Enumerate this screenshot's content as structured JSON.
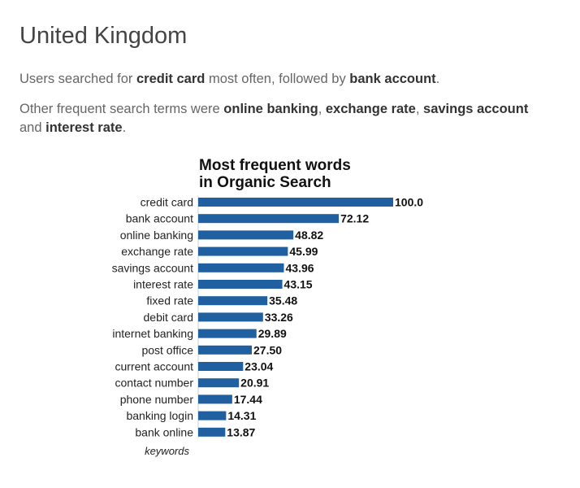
{
  "header": {
    "title": "United Kingdom"
  },
  "summary": {
    "p1": {
      "prefix": "Users searched for ",
      "term1": "credit card",
      "middle": " most often, followed by ",
      "term2": "bank account",
      "suffix": "."
    },
    "p2": {
      "prefix": "Other frequent search terms were ",
      "term1": "online banking",
      "sep1": ", ",
      "term2": "exchange rate",
      "sep2": ", ",
      "term3": "savings account",
      "middle": " and ",
      "term4": "interest rate",
      "suffix": "."
    }
  },
  "chart_data": {
    "type": "bar",
    "orientation": "horizontal",
    "title_line1": "Most frequent words",
    "title_line2": "in Organic Search",
    "ylabel": "keywords",
    "categories": [
      "credit card",
      "bank account",
      "online banking",
      "exchange rate",
      "savings account",
      "interest rate",
      "fixed rate",
      "debit card",
      "internet banking",
      "post office",
      "current account",
      "contact number",
      "phone number",
      "banking login",
      "bank online"
    ],
    "values": [
      100.0,
      72.12,
      48.82,
      45.99,
      43.96,
      43.15,
      35.48,
      33.26,
      29.89,
      27.5,
      23.04,
      20.91,
      17.44,
      14.31,
      13.87
    ],
    "value_labels": [
      "100.0",
      "72.12",
      "48.82",
      "45.99",
      "43.96",
      "43.15",
      "35.48",
      "33.26",
      "29.89",
      "27.50",
      "23.04",
      "20.91",
      "17.44",
      "14.31",
      "13.87"
    ],
    "xlim": [
      0,
      100
    ],
    "bar_color": "#2060a0",
    "grid": false
  }
}
